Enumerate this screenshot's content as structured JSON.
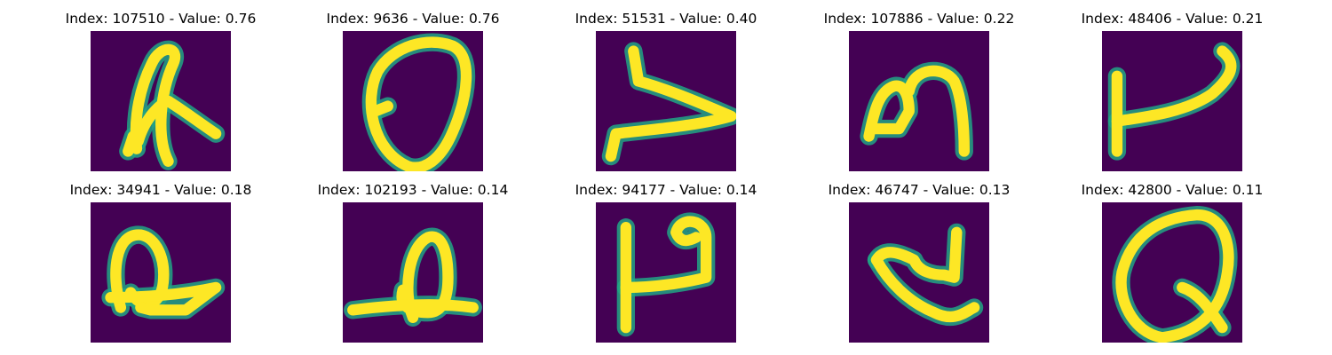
{
  "background_color": "#440154",
  "stroke_color": "#fde725",
  "edge_color": "#21a585",
  "panels": [
    {
      "title": "Index: 107510 - Value: 0.76",
      "glyph": "r_loop"
    },
    {
      "title": "Index: 9636 - Value: 0.76",
      "glyph": "zero"
    },
    {
      "title": "Index: 51531 - Value: 0.40",
      "glyph": "v_sideways"
    },
    {
      "title": "Index: 107886 - Value: 0.22",
      "glyph": "arch"
    },
    {
      "title": "Index: 48406 - Value: 0.21",
      "glyph": "hook"
    },
    {
      "title": "Index: 34941 - Value: 0.18",
      "glyph": "q_loop"
    },
    {
      "title": "Index: 102193 - Value: 0.14",
      "glyph": "b_loop"
    },
    {
      "title": "Index: 94177 - Value: 0.14",
      "glyph": "p_shape"
    },
    {
      "title": "Index: 46747 - Value: 0.13",
      "glyph": "z_curve"
    },
    {
      "title": "Index: 42800 - Value: 0.11",
      "glyph": "q_letter"
    }
  ]
}
